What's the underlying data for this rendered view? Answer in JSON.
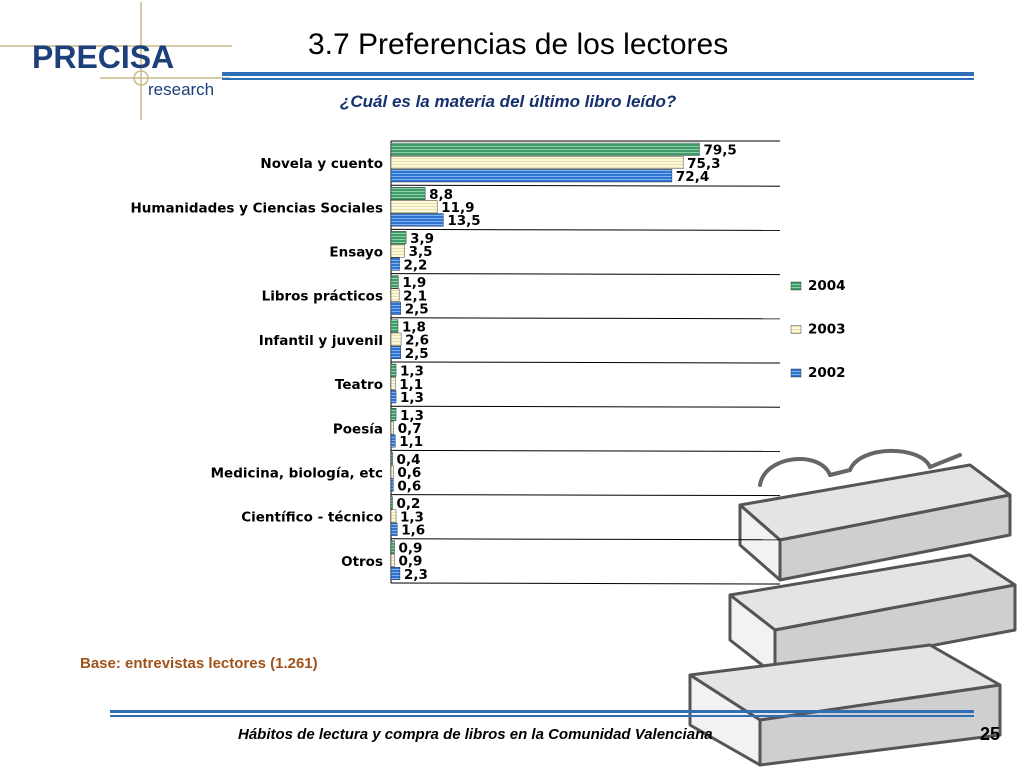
{
  "header": {
    "title": "3.7 Preferencias de los lectores",
    "subtitle": "¿Cuál es la materia del último libro leído?"
  },
  "logo": {
    "main": "PRECISA",
    "sub": "research"
  },
  "colors": {
    "accent_blue": "#2e6fb8",
    "series_2004": "#3f9c68",
    "series_2003": "#f5f0c8",
    "series_2002": "#2f74d2",
    "note_brown": "#a0521a",
    "subtitle_navy": "#16306d"
  },
  "chart_data": {
    "type": "bar",
    "orientation": "horizontal",
    "categories": [
      "Novela y cuento",
      "Humanidades y Ciencias Sociales",
      "Ensayo",
      "Libros prácticos",
      "Infantil y juvenil",
      "Teatro",
      "Poesía",
      "Medicina, biología, etc",
      "Científico - técnico",
      "Otros"
    ],
    "series": [
      {
        "name": "2004",
        "values": [
          79.5,
          8.8,
          3.9,
          1.9,
          1.8,
          1.3,
          1.3,
          0.4,
          0.2,
          0.9
        ],
        "labels": [
          "79,5",
          "8,8",
          "3,9",
          "1,9",
          "1,8",
          "1,3",
          "1,3",
          "0,4",
          "0,2",
          "0,9"
        ]
      },
      {
        "name": "2003",
        "values": [
          75.3,
          11.9,
          3.5,
          2.1,
          2.6,
          1.1,
          0.7,
          0.6,
          1.3,
          0.9
        ],
        "labels": [
          "75,3",
          "11,9",
          "3,5",
          "2,1",
          "2,6",
          "1,1",
          "0,7",
          "0,6",
          "1,3",
          "0,9"
        ]
      },
      {
        "name": "2002",
        "values": [
          72.4,
          13.5,
          2.2,
          2.5,
          2.5,
          1.3,
          1.1,
          0.6,
          1.6,
          2.3
        ],
        "labels": [
          "72,4",
          "13,5",
          "2,2",
          "2,5",
          "2,5",
          "1,3",
          "1,1",
          "0,6",
          "1,6",
          "2,3"
        ]
      }
    ],
    "xlim": [
      0,
      100
    ],
    "legend_position": "right",
    "grid": "horizontal separators between categories"
  },
  "note": "Base: entrevistas lectores (1.261)",
  "footer": {
    "text": "Hábitos de lectura y compra de libros en la Comunidad Valenciana",
    "page": "25"
  }
}
